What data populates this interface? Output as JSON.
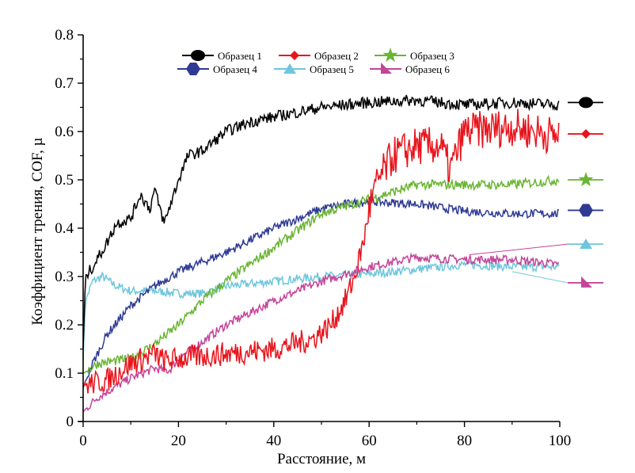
{
  "chart_data": {
    "type": "line",
    "title": "",
    "xlabel": "Расстояние, м",
    "ylabel": "Коэффициент трения, COF, µ",
    "xlim": [
      0,
      100
    ],
    "ylim": [
      0,
      0.8
    ],
    "xticks": [
      "0",
      "20",
      "40",
      "60",
      "80",
      "100"
    ],
    "yticks": [
      "0",
      "0.1",
      "0.2",
      "0.3",
      "0.4",
      "0.5",
      "0.6",
      "0.7",
      "0.8"
    ],
    "grid": false,
    "legend": "top",
    "series": [
      {
        "name": "Образец 1",
        "color": "#000000",
        "marker": "circle",
        "x": [
          0,
          0.5,
          2,
          5,
          7,
          10,
          12,
          14,
          15,
          17,
          20,
          22,
          25,
          30,
          35,
          40,
          50,
          60,
          70,
          80,
          90,
          100
        ],
        "y": [
          0.15,
          0.3,
          0.32,
          0.37,
          0.41,
          0.42,
          0.47,
          0.44,
          0.48,
          0.41,
          0.5,
          0.55,
          0.56,
          0.6,
          0.62,
          0.63,
          0.65,
          0.66,
          0.665,
          0.655,
          0.66,
          0.655
        ]
      },
      {
        "name": "Образец 2",
        "color": "#e8141c",
        "marker": "diamond",
        "x": [
          0,
          5,
          10,
          15,
          17,
          20,
          30,
          40,
          48,
          52,
          55,
          57,
          59,
          60,
          62,
          65,
          70,
          75,
          77,
          80,
          90,
          100
        ],
        "y": [
          0.075,
          0.085,
          0.12,
          0.14,
          0.125,
          0.13,
          0.14,
          0.15,
          0.17,
          0.2,
          0.25,
          0.3,
          0.38,
          0.44,
          0.5,
          0.55,
          0.57,
          0.57,
          0.52,
          0.6,
          0.61,
          0.59
        ]
      },
      {
        "name": "Образец 3",
        "color": "#6ab533",
        "marker": "star",
        "x": [
          0,
          3,
          10,
          15,
          20,
          25,
          30,
          40,
          50,
          60,
          65,
          70,
          80,
          90,
          100
        ],
        "y": [
          0.1,
          0.12,
          0.13,
          0.16,
          0.2,
          0.25,
          0.29,
          0.36,
          0.43,
          0.46,
          0.475,
          0.49,
          0.49,
          0.49,
          0.5
        ]
      },
      {
        "name": "Образец 4",
        "color": "#2e3a94",
        "marker": "hexagon",
        "x": [
          0,
          2,
          5,
          10,
          15,
          20,
          30,
          40,
          45,
          50,
          55,
          60,
          70,
          80,
          90,
          100
        ],
        "y": [
          0.07,
          0.12,
          0.18,
          0.24,
          0.28,
          0.31,
          0.35,
          0.4,
          0.42,
          0.44,
          0.45,
          0.455,
          0.45,
          0.435,
          0.43,
          0.43
        ]
      },
      {
        "name": "Образец 5",
        "color": "#6ec6dc",
        "marker": "triangle",
        "x": [
          0,
          0.5,
          2,
          4,
          7,
          10,
          15,
          20,
          25,
          30,
          40,
          50,
          60,
          70,
          80,
          90,
          100
        ],
        "y": [
          0.13,
          0.25,
          0.29,
          0.3,
          0.28,
          0.27,
          0.27,
          0.265,
          0.265,
          0.28,
          0.29,
          0.3,
          0.305,
          0.315,
          0.325,
          0.32,
          0.32
        ]
      },
      {
        "name": "Образец 6",
        "color": "#c4449a",
        "marker": "right-triangle",
        "x": [
          0,
          3,
          10,
          15,
          18,
          20,
          30,
          40,
          50,
          60,
          70,
          80,
          90,
          100
        ],
        "y": [
          0.02,
          0.05,
          0.09,
          0.11,
          0.105,
          0.13,
          0.2,
          0.25,
          0.29,
          0.32,
          0.34,
          0.335,
          0.335,
          0.325
        ]
      }
    ]
  }
}
